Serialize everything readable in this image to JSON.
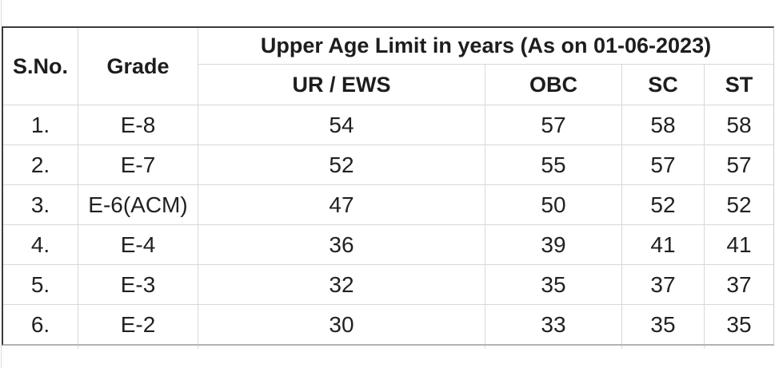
{
  "table": {
    "header": {
      "sno": "S.No.",
      "grade": "Grade",
      "title": "Upper Age Limit in years (As on 01-06-2023)",
      "categories": [
        "UR / EWS",
        "OBC",
        "SC",
        "ST"
      ]
    },
    "rows": [
      {
        "sno": "1.",
        "grade": "E-8",
        "ur_ews": "54",
        "obc": "57",
        "sc": "58",
        "st": "58"
      },
      {
        "sno": "2.",
        "grade": "E-7",
        "ur_ews": "52",
        "obc": "55",
        "sc": "57",
        "st": "57"
      },
      {
        "sno": "3.",
        "grade": "E-6(ACM)",
        "ur_ews": "47",
        "obc": "50",
        "sc": "52",
        "st": "52"
      },
      {
        "sno": "4.",
        "grade": "E-4",
        "ur_ews": "36",
        "obc": "39",
        "sc": "41",
        "st": "41"
      },
      {
        "sno": "5.",
        "grade": "E-3",
        "ur_ews": "32",
        "obc": "35",
        "sc": "37",
        "st": "37"
      },
      {
        "sno": "6.",
        "grade": "E-2",
        "ur_ews": "30",
        "obc": "33",
        "sc": "35",
        "st": "35"
      }
    ],
    "colors": {
      "grid_line": "#d8d8d8",
      "outer_border_dark": "#3a3a3a",
      "outer_border_bottom": "#b3b3b3",
      "outer_border_right": "#cccccc",
      "text": "#212121"
    }
  }
}
